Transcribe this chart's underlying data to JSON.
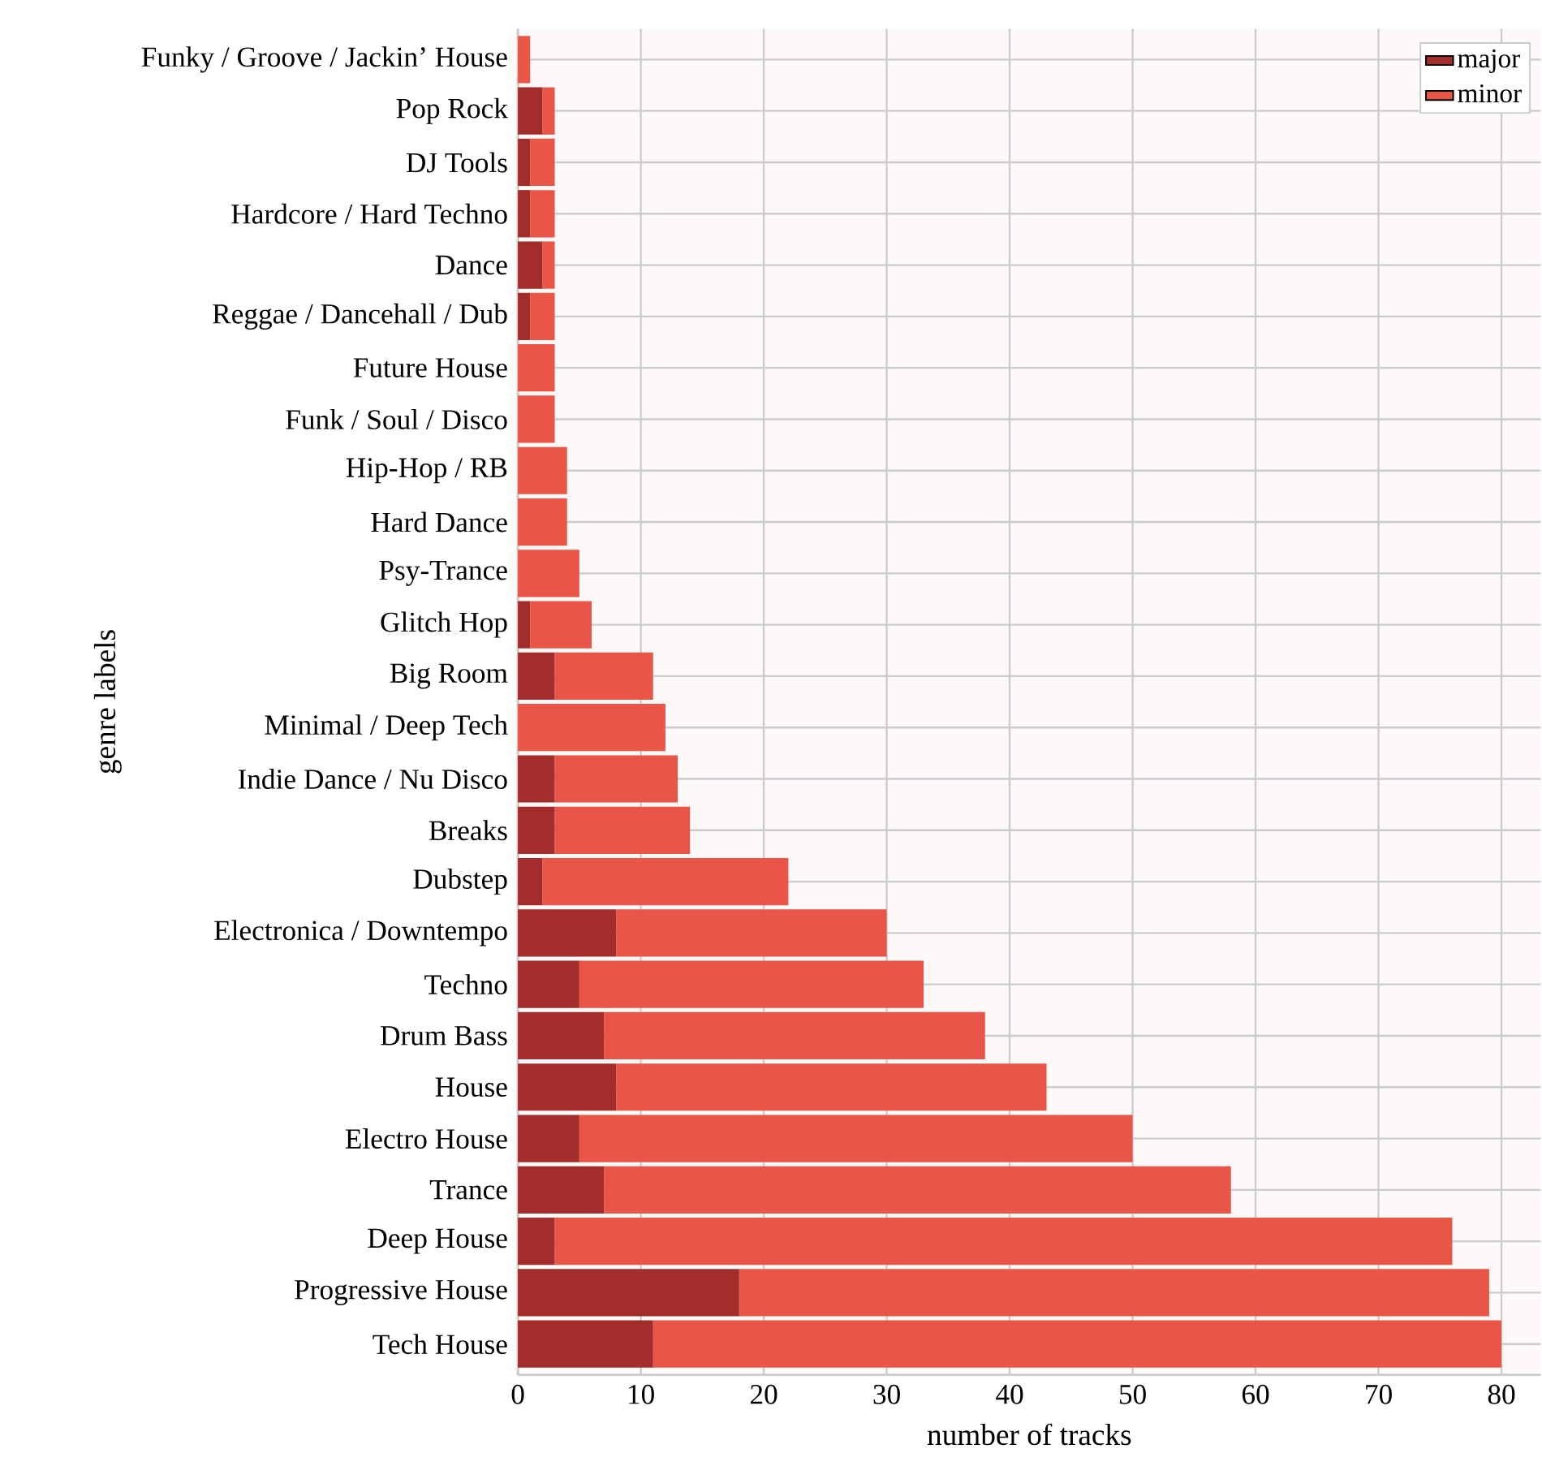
{
  "chart_data": {
    "type": "bar",
    "orientation": "horizontal",
    "stacked": true,
    "xlabel": "number of tracks",
    "ylabel": "genre labels",
    "categories": [
      "Funky / Groove / Jackin’ House",
      "Pop Rock",
      "DJ Tools",
      "Hardcore / Hard Techno",
      "Dance",
      "Reggae / Dancehall / Dub",
      "Future House",
      "Funk / Soul / Disco",
      "Hip-Hop / RB",
      "Hard Dance",
      "Psy-Trance",
      "Glitch Hop",
      "Big Room",
      "Minimal / Deep Tech",
      "Indie Dance / Nu Disco",
      "Breaks",
      "Dubstep",
      "Electronica / Downtempo",
      "Techno",
      "Drum  Bass",
      "House",
      "Electro House",
      "Trance",
      "Deep House",
      "Progressive House",
      "Tech House"
    ],
    "series": [
      {
        "name": "major",
        "color": "#a32d2a",
        "values": [
          0,
          2,
          1,
          1,
          2,
          1,
          0,
          0,
          0,
          0,
          0,
          1,
          3,
          0,
          3,
          3,
          2,
          8,
          5,
          7,
          8,
          5,
          7,
          3,
          18,
          11
        ]
      },
      {
        "name": "minor",
        "color": "#e95546",
        "values": [
          1,
          1,
          2,
          2,
          1,
          2,
          3,
          3,
          4,
          4,
          5,
          5,
          8,
          12,
          10,
          11,
          20,
          22,
          28,
          31,
          35,
          45,
          51,
          73,
          61,
          69
        ]
      }
    ],
    "xlim": [
      0,
      83.2
    ],
    "xticks": [
      0,
      10,
      20,
      30,
      40,
      50,
      60,
      70,
      80
    ],
    "grid": true,
    "legend": "top right"
  }
}
